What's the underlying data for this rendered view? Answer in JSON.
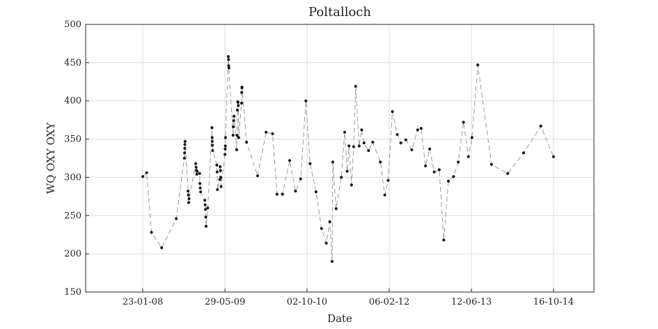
{
  "chart_data": {
    "type": "line",
    "title": "Poltalloch",
    "xlabel": "Date",
    "ylabel": "WQ OXY OXY",
    "ylim": [
      150,
      500
    ],
    "yticks": [
      150,
      200,
      250,
      300,
      350,
      400,
      450,
      500
    ],
    "xlim": [
      "2007-02-15",
      "2015-06-15"
    ],
    "xticks": [
      {
        "date": "2008-01-23",
        "label": "23-01-08"
      },
      {
        "date": "2009-05-29",
        "label": "29-05-09"
      },
      {
        "date": "2010-10-02",
        "label": "02-10-10"
      },
      {
        "date": "2012-02-06",
        "label": "06-02-12"
      },
      {
        "date": "2013-06-12",
        "label": "12-06-13"
      },
      {
        "date": "2014-10-16",
        "label": "16-10-14"
      }
    ],
    "grid": true,
    "series": [
      {
        "line_style": "dashed",
        "line_color": "#9a9a9a",
        "marker_color": "#1a1a1a",
        "points": [
          [
            "2008-01-23",
            301
          ],
          [
            "2008-02-15",
            306
          ],
          [
            "2008-03-15",
            228
          ],
          [
            "2008-05-15",
            208
          ],
          [
            "2008-08-10",
            246
          ],
          [
            "2008-09-28",
            325
          ],
          [
            "2008-09-29",
            332
          ],
          [
            "2008-09-30",
            338
          ],
          [
            "2008-10-01",
            343
          ],
          [
            "2008-10-02",
            347
          ],
          [
            "2008-10-20",
            282
          ],
          [
            "2008-10-22",
            277
          ],
          [
            "2008-10-24",
            267
          ],
          [
            "2008-10-26",
            272
          ],
          [
            "2008-12-05",
            318
          ],
          [
            "2008-12-07",
            313
          ],
          [
            "2008-12-09",
            309
          ],
          [
            "2008-12-11",
            304
          ],
          [
            "2008-12-13",
            308
          ],
          [
            "2008-12-28",
            305
          ],
          [
            "2008-12-30",
            292
          ],
          [
            "2009-01-01",
            286
          ],
          [
            "2009-01-03",
            281
          ],
          [
            "2009-01-28",
            270
          ],
          [
            "2009-01-30",
            264
          ],
          [
            "2009-02-01",
            258
          ],
          [
            "2009-02-03",
            248
          ],
          [
            "2009-02-05",
            236
          ],
          [
            "2009-02-15",
            260
          ],
          [
            "2009-03-12",
            365
          ],
          [
            "2009-03-13",
            352
          ],
          [
            "2009-03-14",
            347
          ],
          [
            "2009-03-15",
            342
          ],
          [
            "2009-03-16",
            335
          ],
          [
            "2009-04-10",
            316
          ],
          [
            "2009-04-12",
            307
          ],
          [
            "2009-04-14",
            284
          ],
          [
            "2009-04-28",
            297
          ],
          [
            "2009-04-30",
            314
          ],
          [
            "2009-05-02",
            309
          ],
          [
            "2009-05-04",
            300
          ],
          [
            "2009-05-06",
            288
          ],
          [
            "2009-05-29",
            330
          ],
          [
            "2009-05-30",
            337
          ],
          [
            "2009-05-31",
            341
          ],
          [
            "2009-06-01",
            352
          ],
          [
            "2009-06-18",
            458
          ],
          [
            "2009-06-19",
            454
          ],
          [
            "2009-06-20",
            446
          ],
          [
            "2009-06-21",
            443
          ],
          [
            "2009-07-16",
            355
          ],
          [
            "2009-07-18",
            366
          ],
          [
            "2009-07-20",
            374
          ],
          [
            "2009-07-22",
            380
          ],
          [
            "2009-08-07",
            336
          ],
          [
            "2009-08-09",
            355
          ],
          [
            "2009-08-11",
            388
          ],
          [
            "2009-08-13",
            399
          ],
          [
            "2009-08-15",
            398
          ],
          [
            "2009-08-17",
            394
          ],
          [
            "2009-08-19",
            352
          ],
          [
            "2009-09-05",
            397
          ],
          [
            "2009-09-06",
            411
          ],
          [
            "2009-09-07",
            417
          ],
          [
            "2009-09-08",
            418
          ],
          [
            "2009-10-05",
            346
          ],
          [
            "2009-12-10",
            302
          ],
          [
            "2010-01-30",
            359
          ],
          [
            "2010-03-10",
            357
          ],
          [
            "2010-04-05",
            278
          ],
          [
            "2010-05-08",
            278
          ],
          [
            "2010-06-20",
            322
          ],
          [
            "2010-07-25",
            282
          ],
          [
            "2010-08-25",
            298
          ],
          [
            "2010-09-25",
            400
          ],
          [
            "2010-10-20",
            318
          ],
          [
            "2010-11-25",
            281
          ],
          [
            "2010-12-28",
            233
          ],
          [
            "2011-01-25",
            214
          ],
          [
            "2011-02-15",
            242
          ],
          [
            "2011-03-01",
            190
          ],
          [
            "2011-03-05",
            320
          ],
          [
            "2011-03-25",
            259
          ],
          [
            "2011-04-25",
            300
          ],
          [
            "2011-05-15",
            359
          ],
          [
            "2011-05-30",
            308
          ],
          [
            "2011-06-10",
            341
          ],
          [
            "2011-06-25",
            290
          ],
          [
            "2011-07-08",
            340
          ],
          [
            "2011-07-20",
            419
          ],
          [
            "2011-08-10",
            341
          ],
          [
            "2011-08-25",
            362
          ],
          [
            "2011-09-08",
            345
          ],
          [
            "2011-10-05",
            335
          ],
          [
            "2011-10-30",
            346
          ],
          [
            "2011-12-15",
            320
          ],
          [
            "2012-01-10",
            277
          ],
          [
            "2012-01-30",
            296
          ],
          [
            "2012-02-25",
            386
          ],
          [
            "2012-03-25",
            356
          ],
          [
            "2012-04-15",
            345
          ],
          [
            "2012-05-15",
            349
          ],
          [
            "2012-06-20",
            336
          ],
          [
            "2012-07-25",
            362
          ],
          [
            "2012-08-15",
            364
          ],
          [
            "2012-09-10",
            315
          ],
          [
            "2012-10-05",
            337
          ],
          [
            "2012-11-01",
            307
          ],
          [
            "2012-12-01",
            310
          ],
          [
            "2012-12-28",
            218
          ],
          [
            "2013-01-25",
            295
          ],
          [
            "2013-02-25",
            301
          ],
          [
            "2013-03-25",
            320
          ],
          [
            "2013-04-25",
            372
          ],
          [
            "2013-05-25",
            327
          ],
          [
            "2013-06-15",
            352
          ],
          [
            "2013-07-20",
            447
          ],
          [
            "2013-10-10",
            317
          ],
          [
            "2014-01-15",
            305
          ],
          [
            "2014-04-20",
            332
          ],
          [
            "2014-08-01",
            367
          ],
          [
            "2014-10-16",
            327
          ]
        ]
      }
    ]
  }
}
